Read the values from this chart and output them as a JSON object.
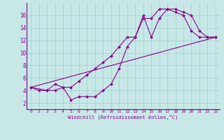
{
  "xlabel": "Windchill (Refroidissement éolien,°C)",
  "bg_color": "#c8e8e8",
  "line_color": "#880088",
  "xlim": [
    -0.5,
    23.5
  ],
  "ylim": [
    1.0,
    18.0
  ],
  "yticks": [
    2,
    4,
    6,
    8,
    10,
    12,
    14,
    16
  ],
  "xticks": [
    0,
    1,
    2,
    3,
    4,
    5,
    6,
    7,
    8,
    9,
    10,
    11,
    12,
    13,
    14,
    15,
    16,
    17,
    18,
    19,
    20,
    21,
    22,
    23
  ],
  "line1_x": [
    0,
    1,
    2,
    3,
    4,
    5,
    6,
    7,
    8,
    9,
    10,
    11,
    12,
    13,
    14,
    15,
    16,
    17,
    18,
    19,
    20,
    21,
    22,
    23
  ],
  "line1_y": [
    4.5,
    4.0,
    4.0,
    4.0,
    4.5,
    2.5,
    3.0,
    3.0,
    3.0,
    4.0,
    5.0,
    7.5,
    11.0,
    12.5,
    15.5,
    15.5,
    17.0,
    17.0,
    16.5,
    16.0,
    13.5,
    12.5,
    12.5,
    12.5
  ],
  "line2_x": [
    0,
    2,
    3,
    4,
    5,
    6,
    7,
    8,
    9,
    10,
    11,
    12,
    13,
    14,
    15,
    16,
    17,
    18,
    19,
    20,
    21,
    22,
    23
  ],
  "line2_y": [
    4.5,
    4.0,
    5.0,
    4.5,
    4.5,
    5.5,
    6.5,
    7.5,
    8.5,
    9.5,
    11.0,
    12.5,
    12.5,
    16.0,
    12.5,
    15.5,
    17.0,
    17.0,
    16.5,
    16.0,
    13.5,
    12.5,
    12.5
  ],
  "line3_x": [
    0,
    23
  ],
  "line3_y": [
    4.5,
    12.5
  ]
}
